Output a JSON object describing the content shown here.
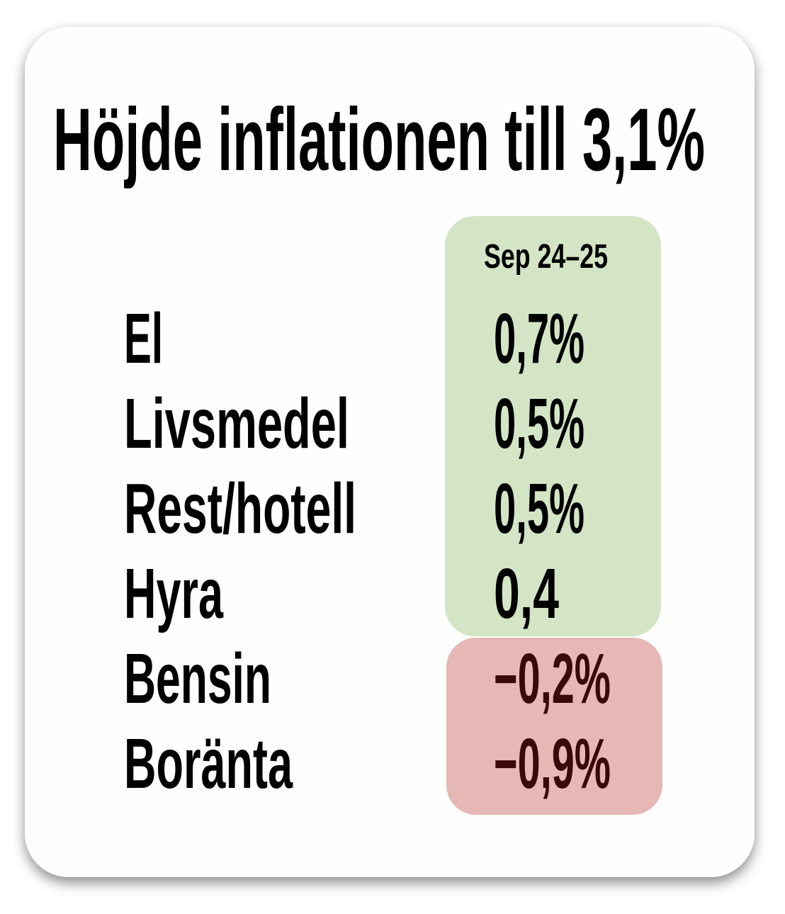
{
  "title": "Höjde inflationen till 3,1%",
  "table": {
    "header": "Sep 24–25",
    "rows": [
      [
        "El",
        "0,7%"
      ],
      [
        "Livsmedel",
        "0,5%"
      ],
      [
        "Rest/hotell",
        "0,5%"
      ],
      [
        "Hyra",
        "0,4"
      ],
      [
        "Bensin",
        "−0,2%"
      ],
      [
        "Boränta",
        "−0,9%"
      ]
    ]
  }
}
